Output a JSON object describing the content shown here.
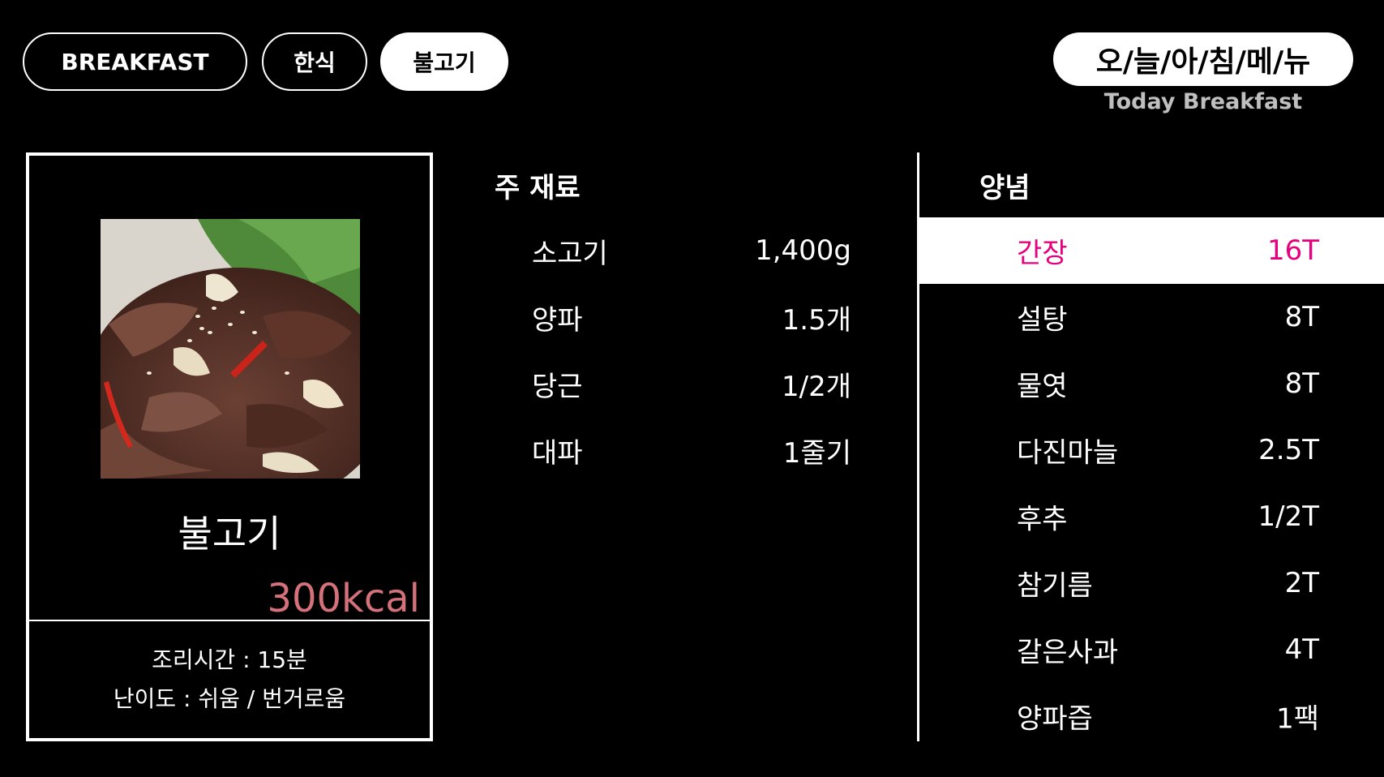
{
  "category_pills": [
    {
      "label": "BREAKFAST",
      "active": false
    },
    {
      "label": "한식",
      "active": false
    },
    {
      "label": "불고기",
      "active": true
    }
  ],
  "header": {
    "title": "오/늘/아/침/메/뉴",
    "subtitle": "Today Breakfast"
  },
  "dish": {
    "name": "불고기",
    "kcal": "300kcal",
    "cook_time": "조리시간 : 15분",
    "difficulty": "난이도 : 쉬움 /  번거로움"
  },
  "main_ingredients": {
    "title": "주 재료",
    "items": [
      {
        "name": "소고기",
        "amount": "1,400g"
      },
      {
        "name": "양파",
        "amount": "1.5개"
      },
      {
        "name": "당근",
        "amount": "1/2개"
      },
      {
        "name": "대파",
        "amount": "1줄기"
      }
    ]
  },
  "seasoning": {
    "title": "양념",
    "items": [
      {
        "name": "간장",
        "amount": "16T",
        "highlight": true
      },
      {
        "name": "설탕",
        "amount": "8T"
      },
      {
        "name": "물엿",
        "amount": "8T"
      },
      {
        "name": "다진마늘",
        "amount": "2.5T"
      },
      {
        "name": "후추",
        "amount": "1/2T"
      },
      {
        "name": "참기름",
        "amount": "2T"
      },
      {
        "name": "갈은사과",
        "amount": "4T"
      },
      {
        "name": "양파즙",
        "amount": "1팩"
      }
    ]
  },
  "colors": {
    "background": "#000000",
    "kcal": "#d4717a",
    "highlight_text": "#e6007e"
  }
}
